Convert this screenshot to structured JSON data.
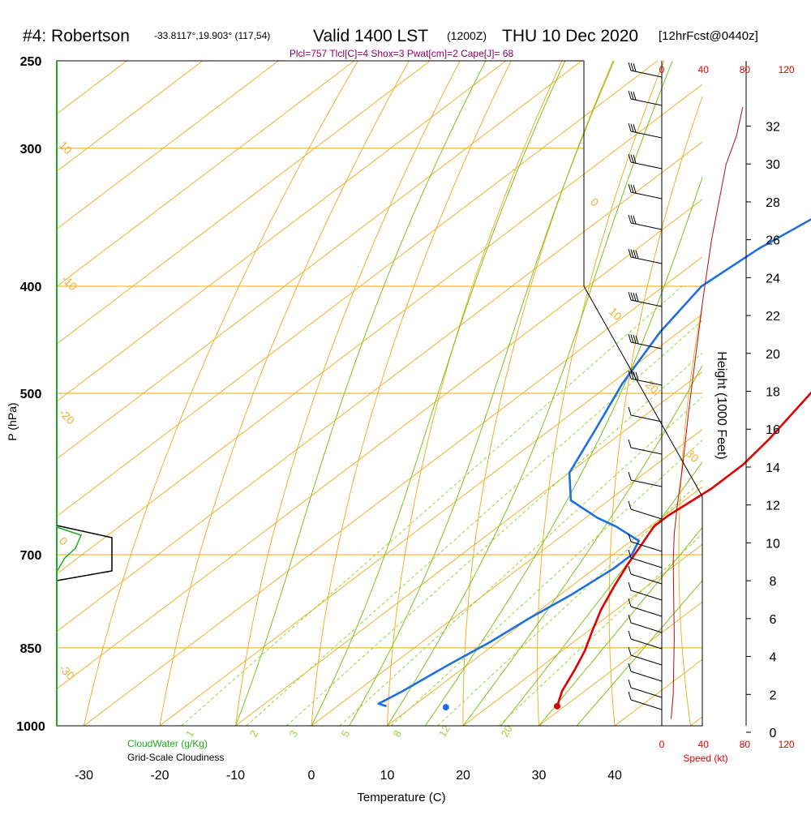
{
  "header": {
    "station": "#4: Robertson",
    "coords": "-33.8117°,19.903° (117,54)",
    "valid": "Valid 1400 LST",
    "utc": "(1200Z)",
    "date": "THU 10 Dec 2020",
    "forecast": "[12hrFcst@0440z]"
  },
  "indices": "Plcl=757 Tlcl[C]=4 Shox=3 Pwat[cm]=2 Cape[J]= 68",
  "cloud": {
    "water_label": "CloudWater (g/Kg)",
    "cloudiness_label": "Grid-Scale Cloudiness",
    "scale": [
      "0.0",
      "0.5",
      "1.0"
    ]
  },
  "chart_data": {
    "type": "line",
    "xlabel": "Temperature (C)",
    "ylabel": "P (hPa)",
    "y2label": "Height (1000 Feet)",
    "speed_label": "Speed (kt)",
    "xlim": [
      -35,
      45
    ],
    "ylim": [
      1000,
      250
    ],
    "yscale": "log",
    "x_ticks": [
      -30,
      -20,
      -10,
      0,
      10,
      20,
      30,
      40
    ],
    "p_ticks": [
      250,
      300,
      400,
      500,
      700,
      850,
      1000
    ],
    "height_ticks": [
      0,
      2,
      4,
      6,
      8,
      10,
      12,
      14,
      16,
      18,
      20,
      22,
      24,
      26,
      28,
      30,
      32
    ],
    "speed_ticks": [
      0,
      40,
      80,
      120
    ],
    "isotherm_labels": [
      "0",
      "10",
      "20",
      "30",
      "-10",
      "-20",
      "-30",
      "10",
      "0"
    ],
    "mixing_ratio_labels": [
      "1",
      "2",
      "3",
      "5",
      "8",
      "12",
      "20"
    ],
    "series": [
      {
        "name": "",
        "color": "#e00000",
        "points": [
          [
            -0.5,
            260
          ],
          [
            -0.5,
            285
          ],
          [
            0.5,
            320
          ],
          [
            1.5,
            350
          ],
          [
            3,
            400
          ],
          [
            5.5,
            450
          ],
          [
            8,
            500
          ],
          [
            10.5,
            550
          ],
          [
            11.5,
            580
          ],
          [
            11.5,
            610
          ],
          [
            10.5,
            645
          ],
          [
            10.5,
            660
          ],
          [
            12,
            685
          ],
          [
            13.5,
            712
          ],
          [
            15.5,
            745
          ],
          [
            18,
            785
          ],
          [
            20.5,
            820
          ],
          [
            23,
            855
          ],
          [
            25,
            890
          ],
          [
            27,
            930
          ],
          [
            29,
            960
          ]
        ]
      },
      {
        "name": "",
        "color": "#1e6fe0",
        "points": [
          [
            -16,
            260
          ],
          [
            -18,
            300
          ],
          [
            -21.5,
            340
          ],
          [
            -24,
            370
          ],
          [
            -25,
            400
          ],
          [
            -22.5,
            440
          ],
          [
            -18.5,
            490
          ],
          [
            -14,
            540
          ],
          [
            -10,
            590
          ],
          [
            -5,
            625
          ],
          [
            1.5,
            648
          ],
          [
            5.5,
            660
          ],
          [
            11,
            680
          ],
          [
            12.5,
            700
          ],
          [
            12.5,
            720
          ],
          [
            11.5,
            760
          ],
          [
            10,
            800
          ],
          [
            9,
            840
          ],
          [
            7.5,
            880
          ],
          [
            6,
            930
          ],
          [
            5,
            955
          ],
          [
            6.5,
            960
          ]
        ]
      },
      {
        "name": "",
        "color": "#6a0d60",
        "dashed": true,
        "points": [
          [
            2.5,
            370
          ],
          [
            5.5,
            420
          ],
          [
            8.5,
            470
          ],
          [
            10.5,
            500
          ]
        ]
      }
    ],
    "surface_points": [
      {
        "t": 29,
        "p": 960,
        "color": "#e00000"
      },
      {
        "t": 14.5,
        "p": 962,
        "color": "#1e6fe0"
      }
    ],
    "speed_profile_kt": [
      [
        9,
        0.7
      ],
      [
        11,
        2
      ],
      [
        12,
        5
      ],
      [
        11,
        9
      ],
      [
        12,
        10.5
      ],
      [
        15,
        12
      ],
      [
        20,
        14
      ],
      [
        26,
        17
      ],
      [
        33,
        20
      ],
      [
        40,
        23
      ],
      [
        48,
        26
      ],
      [
        55,
        28
      ],
      [
        62,
        30
      ],
      [
        72,
        31.5
      ],
      [
        78,
        33
      ]
    ]
  }
}
